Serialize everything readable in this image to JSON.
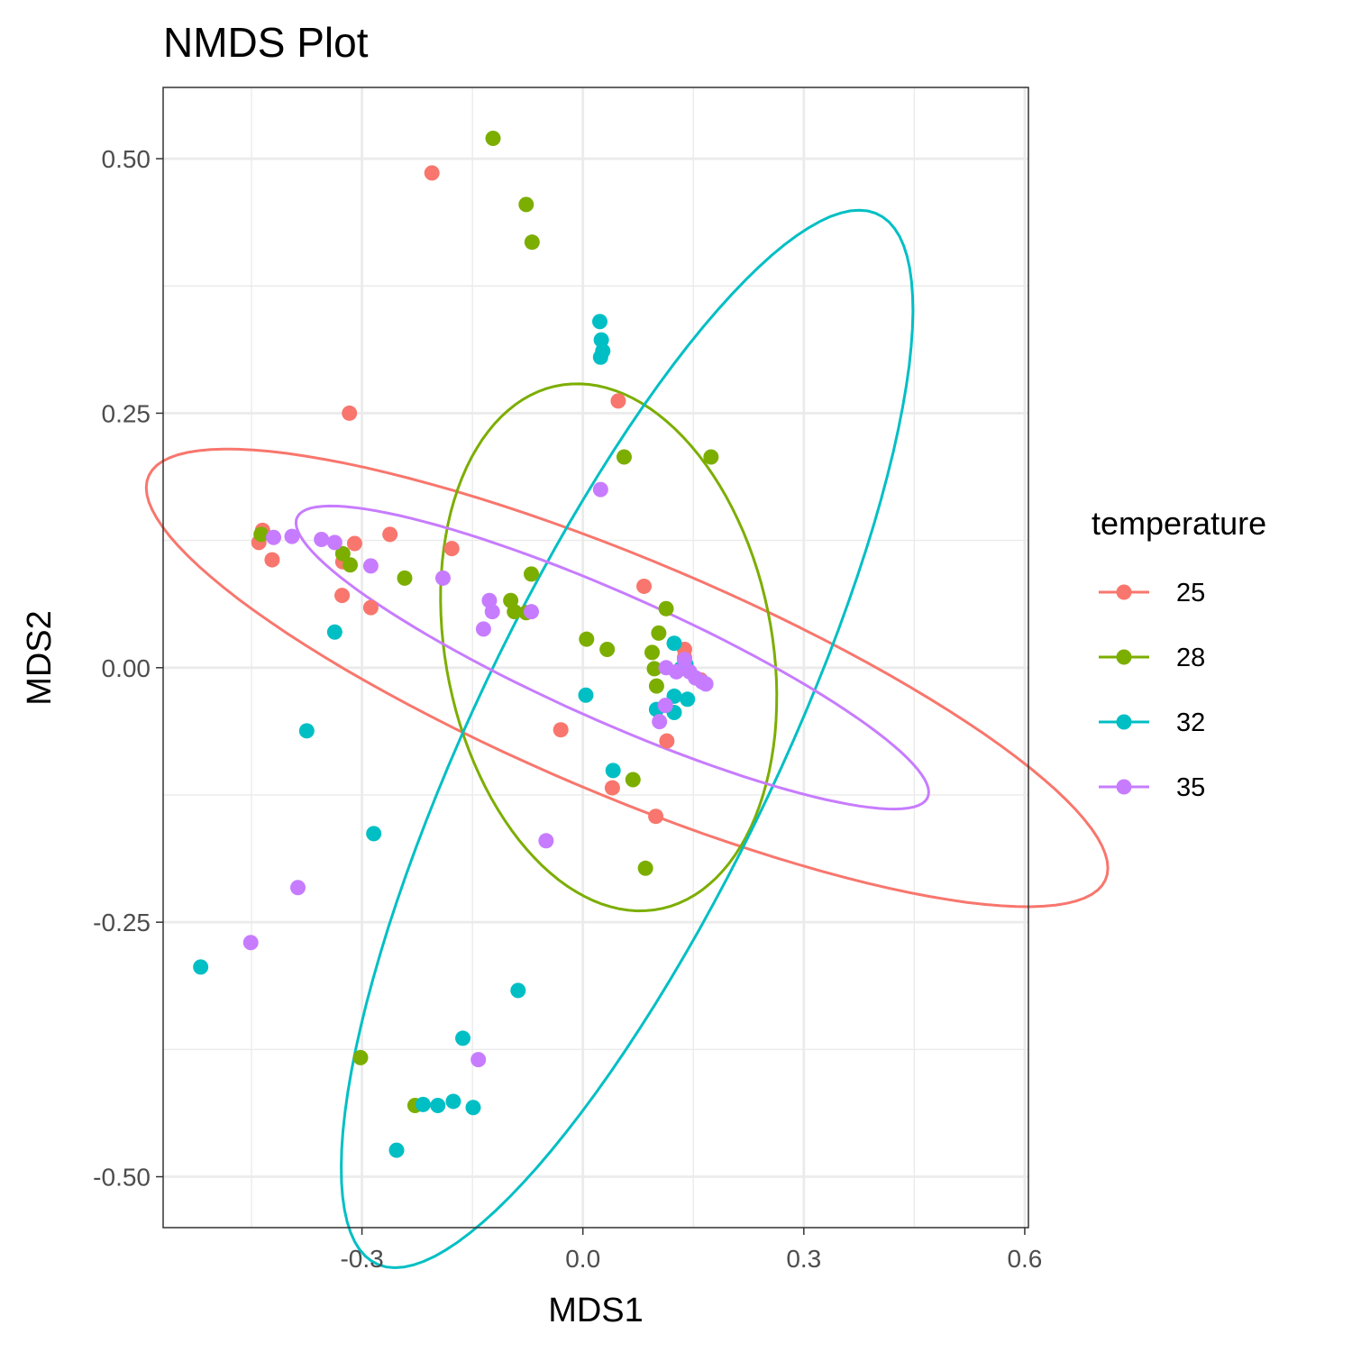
{
  "chart_data": {
    "type": "scatter",
    "title": "NMDS Plot",
    "xlabel": "MDS1",
    "ylabel": "MDS2",
    "xlim": [
      -0.57,
      0.605
    ],
    "ylim": [
      -0.55,
      0.57
    ],
    "xticks": [
      -0.3,
      0.0,
      0.3,
      0.6
    ],
    "xtick_labels": [
      "-0.3",
      "0.0",
      "0.3",
      "0.6"
    ],
    "yticks": [
      -0.5,
      -0.25,
      0.0,
      0.25,
      0.5
    ],
    "ytick_labels": [
      "-0.50",
      "-0.25",
      "0.00",
      "0.25",
      "0.50"
    ],
    "grid": true,
    "legend": {
      "title": "temperature",
      "position": "right"
    },
    "series": [
      {
        "name": "25",
        "color": "#F8766D",
        "ellipse": {
          "center": [
            0.06,
            -0.01
          ],
          "semi_major": 0.68,
          "semi_minor": 0.12,
          "angle_deg": -16.5
        },
        "points": [
          [
            -0.205,
            0.486
          ],
          [
            -0.317,
            0.25
          ],
          [
            0.048,
            0.262
          ],
          [
            -0.435,
            0.135
          ],
          [
            -0.44,
            0.123
          ],
          [
            -0.422,
            0.106
          ],
          [
            -0.31,
            0.122
          ],
          [
            -0.262,
            0.131
          ],
          [
            -0.178,
            0.117
          ],
          [
            -0.326,
            0.104
          ],
          [
            -0.327,
            0.071
          ],
          [
            -0.288,
            0.059
          ],
          [
            0.083,
            0.08
          ],
          [
            0.138,
            0.018
          ],
          [
            -0.03,
            -0.061
          ],
          [
            0.114,
            -0.072
          ],
          [
            0.04,
            -0.118
          ],
          [
            0.099,
            -0.146
          ],
          [
            0.138,
            0.01
          ],
          [
            0.16,
            -0.012
          ]
        ]
      },
      {
        "name": "28",
        "color": "#7CAE00",
        "ellipse": {
          "center": [
            0.035,
            0.02
          ],
          "semi_major": 0.27,
          "semi_minor": 0.215,
          "angle_deg": -62
        },
        "points": [
          [
            -0.122,
            0.52
          ],
          [
            -0.077,
            0.455
          ],
          [
            -0.069,
            0.418
          ],
          [
            0.056,
            0.207
          ],
          [
            0.174,
            0.207
          ],
          [
            -0.437,
            0.131
          ],
          [
            -0.326,
            0.112
          ],
          [
            -0.316,
            0.101
          ],
          [
            -0.242,
            0.088
          ],
          [
            -0.07,
            0.092
          ],
          [
            -0.098,
            0.066
          ],
          [
            -0.093,
            0.055
          ],
          [
            -0.077,
            0.054
          ],
          [
            0.113,
            0.058
          ],
          [
            0.005,
            0.028
          ],
          [
            0.033,
            0.018
          ],
          [
            0.103,
            0.034
          ],
          [
            0.094,
            0.015
          ],
          [
            0.097,
            -0.001
          ],
          [
            0.1,
            -0.018
          ],
          [
            0.068,
            -0.11
          ],
          [
            0.085,
            -0.197
          ],
          [
            -0.302,
            -0.383
          ],
          [
            -0.228,
            -0.43
          ]
        ]
      },
      {
        "name": "32",
        "color": "#00BFC4",
        "ellipse": {
          "center": [
            0.06,
            -0.07
          ],
          "semi_major": 0.62,
          "semi_minor": 0.19,
          "angle_deg": 55
        },
        "points": [
          [
            0.023,
            0.34
          ],
          [
            0.025,
            0.322
          ],
          [
            0.027,
            0.311
          ],
          [
            0.024,
            0.305
          ],
          [
            -0.337,
            0.035
          ],
          [
            0.124,
            0.024
          ],
          [
            0.14,
            0.003
          ],
          [
            0.133,
            -0.001
          ],
          [
            0.124,
            -0.028
          ],
          [
            0.142,
            -0.031
          ],
          [
            0.004,
            -0.027
          ],
          [
            0.1,
            -0.041
          ],
          [
            0.124,
            -0.044
          ],
          [
            -0.375,
            -0.062
          ],
          [
            0.041,
            -0.101
          ],
          [
            -0.284,
            -0.163
          ],
          [
            -0.519,
            -0.294
          ],
          [
            -0.088,
            -0.317
          ],
          [
            -0.163,
            -0.364
          ],
          [
            -0.217,
            -0.429
          ],
          [
            -0.197,
            -0.43
          ],
          [
            -0.176,
            -0.426
          ],
          [
            -0.149,
            -0.432
          ],
          [
            -0.253,
            -0.474
          ]
        ]
      },
      {
        "name": "35",
        "color": "#C77CFF",
        "ellipse": {
          "center": [
            0.04,
            0.01
          ],
          "semi_major": 0.45,
          "semi_minor": 0.065,
          "angle_deg": -17.5
        },
        "points": [
          [
            0.024,
            0.175
          ],
          [
            -0.42,
            0.128
          ],
          [
            -0.395,
            0.129
          ],
          [
            -0.355,
            0.126
          ],
          [
            -0.337,
            0.123
          ],
          [
            -0.288,
            0.1
          ],
          [
            -0.19,
            0.088
          ],
          [
            -0.127,
            0.066
          ],
          [
            -0.123,
            0.055
          ],
          [
            -0.07,
            0.055
          ],
          [
            -0.135,
            0.038
          ],
          [
            0.138,
            0.008
          ],
          [
            0.113,
            0.0
          ],
          [
            0.127,
            -0.004
          ],
          [
            0.145,
            -0.004
          ],
          [
            0.153,
            -0.01
          ],
          [
            0.162,
            -0.014
          ],
          [
            0.167,
            -0.016
          ],
          [
            0.112,
            -0.037
          ],
          [
            0.104,
            -0.053
          ],
          [
            -0.05,
            -0.17
          ],
          [
            -0.387,
            -0.216
          ],
          [
            -0.451,
            -0.27
          ],
          [
            -0.142,
            -0.385
          ]
        ]
      }
    ]
  }
}
